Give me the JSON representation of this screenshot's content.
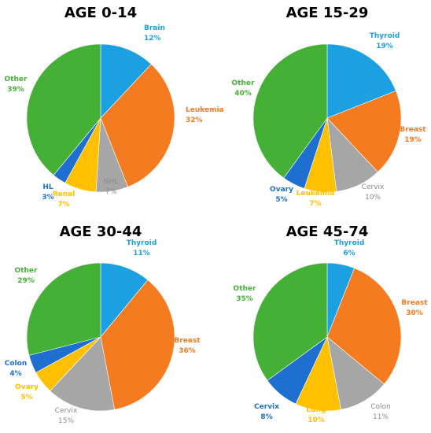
{
  "chart_data": [
    {
      "type": "pie",
      "title": "AGE 0-14",
      "slices": [
        {
          "label": "Brain",
          "value": 12,
          "pct": "12%",
          "color": "#1ba1e2"
        },
        {
          "label": "Leukemia",
          "value": 32,
          "pct": "32%",
          "color": "#f47b20"
        },
        {
          "label": "NHL",
          "value": 7,
          "pct": "7%",
          "color": "#a6a6a6"
        },
        {
          "label": "Renal",
          "value": 7,
          "pct": "7%",
          "color": "#ffc000"
        },
        {
          "label": "HL",
          "value": 3,
          "pct": "3%",
          "color": "#1f6fd0"
        },
        {
          "label": "Other",
          "value": 39,
          "pct": "39%",
          "color": "#44b035"
        }
      ]
    },
    {
      "type": "pie",
      "title": "AGE 15-29",
      "slices": [
        {
          "label": "Thyroid",
          "value": 19,
          "pct": "19%",
          "color": "#1ba1e2"
        },
        {
          "label": "Breast",
          "value": 19,
          "pct": "19%",
          "color": "#f47b20"
        },
        {
          "label": "Cervix",
          "value": 10,
          "pct": "10%",
          "color": "#a6a6a6"
        },
        {
          "label": "Leukemia",
          "value": 7,
          "pct": "7%",
          "color": "#ffc000"
        },
        {
          "label": "Ovary",
          "value": 5,
          "pct": "5%",
          "color": "#1f6fd0"
        },
        {
          "label": "Other",
          "value": 40,
          "pct": "40%",
          "color": "#44b035"
        }
      ]
    },
    {
      "type": "pie",
      "title": "AGE 30-44",
      "slices": [
        {
          "label": "Thyroid",
          "value": 11,
          "pct": "11%",
          "color": "#1ba1e2"
        },
        {
          "label": "Breast",
          "value": 36,
          "pct": "36%",
          "color": "#f47b20"
        },
        {
          "label": "Cervix",
          "value": 15,
          "pct": "15%",
          "color": "#a6a6a6"
        },
        {
          "label": "Ovary",
          "value": 5,
          "pct": "5%",
          "color": "#ffc000"
        },
        {
          "label": "Colon",
          "value": 4,
          "pct": "4%",
          "color": "#1f6fd0"
        },
        {
          "label": "Other",
          "value": 29,
          "pct": "29%",
          "color": "#44b035"
        }
      ]
    },
    {
      "type": "pie",
      "title": "AGE 45-74",
      "slices": [
        {
          "label": "Thyroid",
          "value": 6,
          "pct": "6%",
          "color": "#1ba1e2"
        },
        {
          "label": "Breast",
          "value": 30,
          "pct": "30%",
          "color": "#f47b20"
        },
        {
          "label": "Colon",
          "value": 11,
          "pct": "11%",
          "color": "#a6a6a6"
        },
        {
          "label": "Lung",
          "value": 10,
          "pct": "10%",
          "color": "#ffc000"
        },
        {
          "label": "Cervix",
          "value": 8,
          "pct": "8%",
          "color": "#1f6fd0"
        },
        {
          "label": "Other",
          "value": 35,
          "pct": "35%",
          "color": "#44b035"
        }
      ]
    }
  ]
}
